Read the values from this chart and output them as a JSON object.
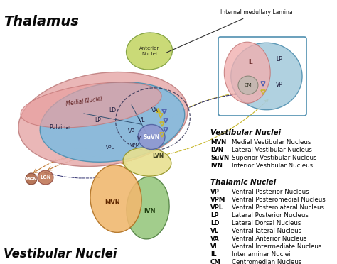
{
  "bg_color": "#ffffff",
  "fig_width": 4.74,
  "fig_height": 3.72,
  "legend_vestibular_title": "Vestibular Nuclei",
  "legend_vestibular": [
    [
      "MVN",
      "Medial Vestibular Nucleus"
    ],
    [
      "LVN",
      "Lateral Vestibular Nucleus"
    ],
    [
      "SuVN",
      "Superior Vestibular Nucleus"
    ],
    [
      "IVN",
      "Inferior Vestibular Nucleus"
    ]
  ],
  "legend_thalamic_title": "Thalamic Nuclei",
  "legend_thalamic": [
    [
      "VP",
      "Ventral Posterior Nucleus"
    ],
    [
      "VPM",
      "Ventral Posteromedial Nucleus"
    ],
    [
      "VPL",
      "Ventral Posterolateral Nucleus"
    ],
    [
      "LP",
      "Lateral Posterior Nucleus"
    ],
    [
      "LD",
      "Lateral Dorsal Nucleus"
    ],
    [
      "VL",
      "Ventral lateral Nucleus"
    ],
    [
      "VA",
      "Ventral Anterior Nucleus"
    ],
    [
      "VI",
      "Ventral Intermediate Nucleus"
    ],
    [
      "IL",
      "Interlaminar Nuclei"
    ],
    [
      "CM",
      "Centromedian Nucleus"
    ]
  ],
  "label_thalamus": "Thalamus",
  "label_vestibular_nuclei": "Vestibular Nuclei",
  "label_internal_medullary": "Internal medullary Lamina",
  "label_anterior_nuclei": "Anterior\nNuclei",
  "label_medial_nuclei": "Medial Nuclei",
  "label_pulvinar": "Pulvinar",
  "label_mgn": "MGN",
  "label_lgn": "LGN",
  "colors": {
    "blue_thalamus": "#88bbdd",
    "pink_medial": "#e8a0a0",
    "green_anterior": "#c8d870",
    "pink_outer": "#e8b0b0",
    "pink_inset": "#f0b0b0",
    "blue_inset": "#a8ccdd",
    "cm_gray": "#c0b8b0",
    "mvn_orange": "#f0b870",
    "lvn_yellow": "#e8e090",
    "ivn_green": "#98c880",
    "suvn_blue": "#9098d0",
    "mgn_brown": "#b06848",
    "lgn_brown": "#c07858"
  }
}
